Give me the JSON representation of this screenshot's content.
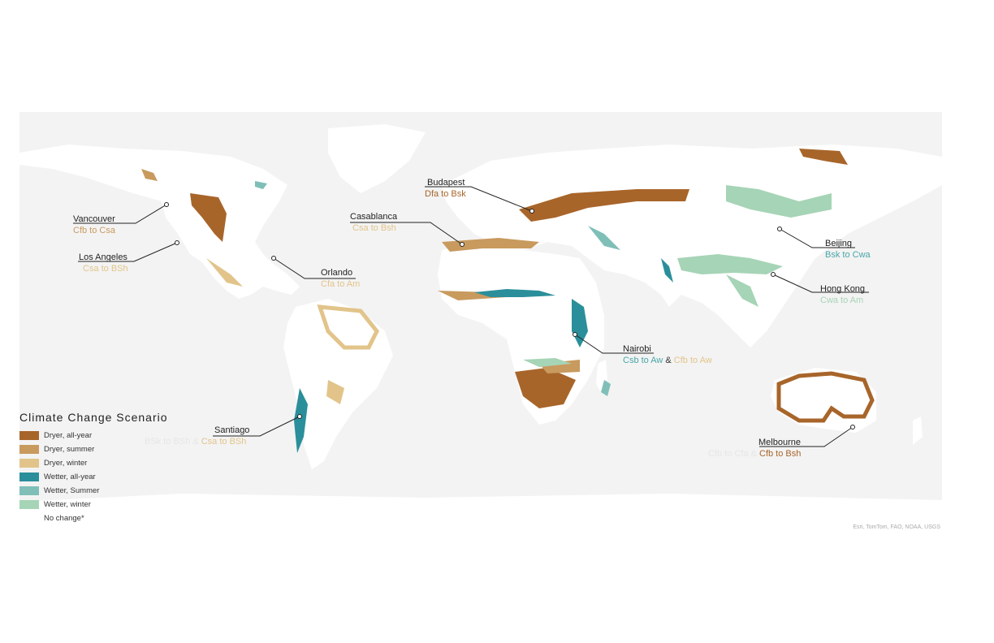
{
  "legend": {
    "title": "Climate Change Scenario",
    "items": [
      {
        "label": "Dryer, all-year",
        "color": "#a8652a"
      },
      {
        "label": "Dryer, summer",
        "color": "#c89a5e"
      },
      {
        "label": "Dryer, winter",
        "color": "#e2c48a"
      },
      {
        "label": "Wetter, all-year",
        "color": "#2a8f9a"
      },
      {
        "label": "Wetter, Summer",
        "color": "#7fbfb8"
      },
      {
        "label": "Wetter, winter",
        "color": "#a6d4b6"
      },
      {
        "label": "No change*",
        "color": "#ffffff"
      }
    ]
  },
  "cities": {
    "vancouver": {
      "name": "Vancouver",
      "change": "Cfb to Csa"
    },
    "los_angeles": {
      "name": "Los Angeles",
      "change": "Csa to BSh"
    },
    "orlando": {
      "name": "Orlando",
      "change": "Cfa to Am"
    },
    "casablanca": {
      "name": "Casablanca",
      "change": "Csa to Bsh"
    },
    "budapest": {
      "name": "Budapest",
      "change": "Dfa to Bsk"
    },
    "beijing": {
      "name": "Beijing",
      "change": "Bsk to Cwa"
    },
    "hong_kong": {
      "name": "Hong Kong",
      "change": "Cwa to Am"
    },
    "nairobi": {
      "name": "Nairobi",
      "change_a": "Csb to Aw",
      "amp": "&",
      "change_b": "Cfb to Aw"
    },
    "santiago": {
      "name": "Santiago",
      "change_a": "BSk to BSh",
      "amp": "&",
      "change_b": "Csa to BSh"
    },
    "melbourne": {
      "name": "Melbourne",
      "change_a": "Cfb to Cfa",
      "amp": "&",
      "change_b": "Cfb to Bsh"
    }
  },
  "attribution": "Esri, TomTom, FAO, NOAA, USGS"
}
